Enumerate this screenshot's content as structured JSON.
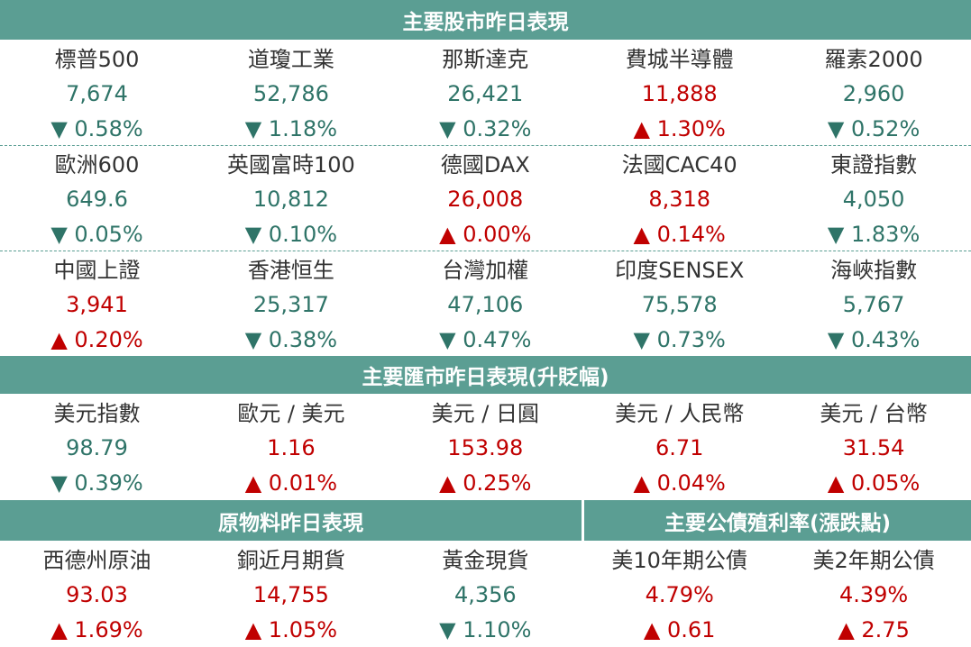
{
  "stock_market": {
    "title": "主要股市昨日表現",
    "rows": [
      [
        {
          "name": "標普500",
          "value": "7,674",
          "change": "▼ 0.58%"
        },
        {
          "name": "道瓊工業",
          "value": "52,786",
          "change": "▼ 1.18%"
        },
        {
          "name": "那斯達克",
          "value": "26,421",
          "change": "▼ 0.32%"
        },
        {
          "name": "費城半導體",
          "value": "11,888",
          "change": "▲ 1.30%"
        },
        {
          "name": "羅素2000",
          "value": "2,960",
          "change": "▼ 0.52%"
        }
      ],
      [
        {
          "name": "歐洲600",
          "value": "649.6",
          "change": "▼ 0.05%"
        },
        {
          "name": "英國富時100",
          "value": "10,812",
          "change": "▼ 0.10%"
        },
        {
          "name": "德國DAX",
          "value": "26,008",
          "change": "▲ 0.00%"
        },
        {
          "name": "法國CAC40",
          "value": "8,318",
          "change": "▲ 0.14%"
        },
        {
          "name": "東證指數",
          "value": "4,050",
          "change": "▼ 1.83%"
        }
      ],
      [
        {
          "name": "中國上證",
          "value": "3,941",
          "change": "▲ 0.20%"
        },
        {
          "name": "香港恒生",
          "value": "25,317",
          "change": "▼ 0.38%"
        },
        {
          "name": "台灣加權",
          "value": "47,106",
          "change": "▼ 0.47%"
        },
        {
          "name": "印度SENSEX",
          "value": "75,578",
          "change": "▼ 0.73%"
        },
        {
          "name": "海峽指數",
          "value": "5,767",
          "change": "▼ 0.43%"
        }
      ]
    ]
  },
  "fx_market": {
    "title": "主要匯市昨日表現(升貶幅)",
    "rows": [
      [
        {
          "name": "美元指數",
          "value": "98.79",
          "change": "▼ 0.39%"
        },
        {
          "name": "歐元 / 美元",
          "value": "1.16",
          "change": "▲ 0.01%"
        },
        {
          "name": "美元 / 日圓",
          "value": "153.98",
          "change": "▲ 0.25%"
        },
        {
          "name": "美元 / 人民幣",
          "value": "6.71",
          "change": "▲ 0.04%"
        },
        {
          "name": "美元 / 台幣",
          "value": "31.54",
          "change": "▲ 0.05%"
        }
      ]
    ]
  },
  "commodities": {
    "title": "原物料昨日表現",
    "items": [
      {
        "name": "西德州原油",
        "value": "93.03",
        "change": "▲ 1.69%"
      },
      {
        "name": "銅近月期貨",
        "value": "14,755",
        "change": "▲ 1.05%"
      },
      {
        "name": "黃金現貨",
        "value": "4,356",
        "change": "▼ 1.10%"
      }
    ]
  },
  "bonds": {
    "title": "主要公債殖利率(漲跌點)",
    "items": [
      {
        "name": "美10年期公債",
        "value": "4.79%",
        "change": "▲ 0.61"
      },
      {
        "name": "美2年期公債",
        "value": "4.39%",
        "change": "▲ 2.75"
      }
    ]
  }
}
